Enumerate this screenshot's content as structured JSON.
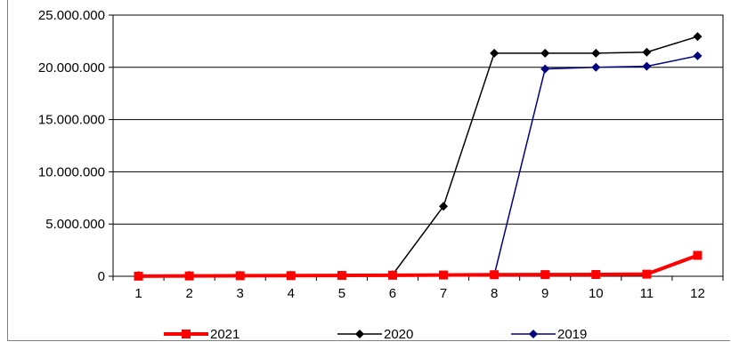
{
  "chart_data": {
    "type": "line",
    "title": "",
    "xlabel": "",
    "ylabel": "",
    "x": [
      1,
      2,
      3,
      4,
      5,
      6,
      7,
      8,
      9,
      10,
      11,
      12
    ],
    "ylim": [
      0,
      25000000
    ],
    "yticks": [
      0,
      5000000,
      10000000,
      15000000,
      20000000,
      25000000
    ],
    "ytick_labels": [
      "0",
      "5.000.000",
      "10.000.000",
      "15.000.000",
      "20.000.000",
      "25.000.000"
    ],
    "xtick_labels": [
      "1",
      "2",
      "3",
      "4",
      "5",
      "6",
      "7",
      "8",
      "9",
      "10",
      "11",
      "12"
    ],
    "grid": "horizontal major gridlines",
    "legend_position": "bottom",
    "series": [
      {
        "name": "2021",
        "color": "#ff0000",
        "marker": "square",
        "values": [
          10000,
          30000,
          50000,
          60000,
          80000,
          100000,
          120000,
          150000,
          160000,
          170000,
          200000,
          2000000
        ]
      },
      {
        "name": "2020",
        "color": "#000000",
        "marker": "diamond",
        "values": [
          60000,
          80000,
          90000,
          100000,
          120000,
          150000,
          6700000,
          21350000,
          21350000,
          21350000,
          21450000,
          22950000
        ]
      },
      {
        "name": "2019",
        "color": "#000080",
        "marker": "diamond",
        "values": [
          50000,
          60000,
          70000,
          80000,
          90000,
          100000,
          110000,
          120000,
          19850000,
          20000000,
          20100000,
          21100000
        ]
      }
    ]
  }
}
